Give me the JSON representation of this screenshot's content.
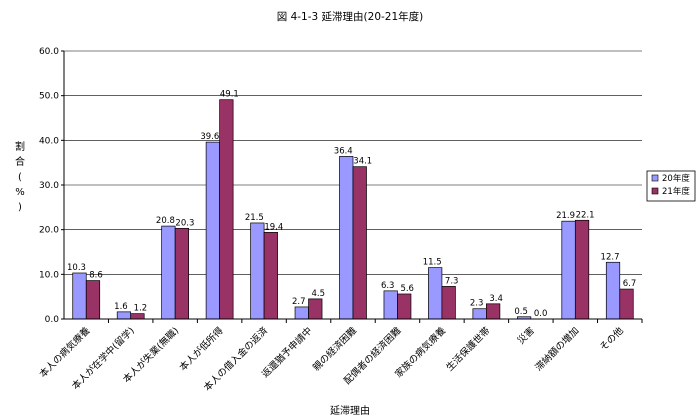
{
  "chart_data": {
    "type": "bar",
    "title": "図 4-1-3 延滞理由(20-21年度)",
    "xlabel": "延滞理由",
    "ylabel": [
      "割",
      "合",
      "(",
      "%",
      ")"
    ],
    "ylim": [
      0,
      60
    ],
    "yticks": [
      "0.0",
      "10.0",
      "20.0",
      "30.0",
      "40.0",
      "50.0",
      "60.0"
    ],
    "grid": true,
    "legend_position": "right",
    "categories": [
      "本人の病気療養",
      "本人が在学中(留学)",
      "本人が失業(無職)",
      "本人が低所得",
      "本人の借入金の返済",
      "返還猶予申請中",
      "親の経済困難",
      "配偶者の経済困難",
      "家族の病気療養",
      "生活保護世帯",
      "災害",
      "滞納額の増加",
      "その他"
    ],
    "series": [
      {
        "name": "20年度",
        "color": "#9999ff",
        "values": [
          10.3,
          1.6,
          20.8,
          39.6,
          21.5,
          2.7,
          36.4,
          6.3,
          11.5,
          2.3,
          0.5,
          21.9,
          12.7
        ],
        "labels": [
          "10.3",
          "1.6",
          "20.8",
          "39.6",
          "21.5",
          "2.7",
          "36.4",
          "6.3",
          "11.5",
          "2.3",
          "0.5",
          "21.9",
          "12.7"
        ]
      },
      {
        "name": "21年度",
        "color": "#993366",
        "values": [
          8.6,
          1.2,
          20.3,
          49.1,
          19.4,
          4.5,
          34.1,
          5.6,
          7.3,
          3.4,
          0.0,
          22.1,
          6.7
        ],
        "labels": [
          "8.6",
          "1.2",
          "20.3",
          "49.1",
          "19.4",
          "4.5",
          "34.1",
          "5.6",
          "7.3",
          "3.4",
          "0.0",
          "22.1",
          "6.7"
        ]
      }
    ]
  }
}
